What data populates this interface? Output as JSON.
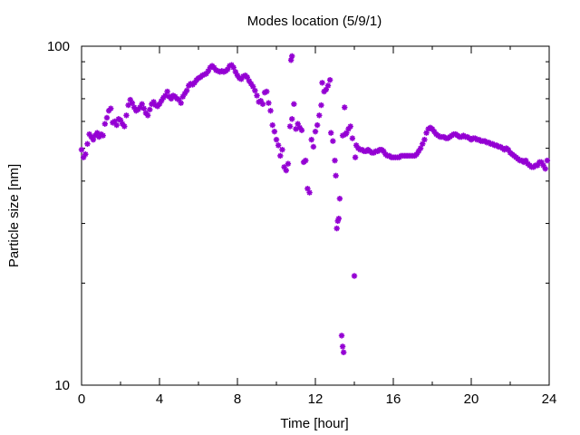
{
  "chart_data": {
    "type": "scatter",
    "title": "Modes location (5/9/1)",
    "xlabel": "Time [hour]",
    "ylabel": "Particle size [nm]",
    "xlim": [
      0,
      24
    ],
    "ylim": [
      10,
      100
    ],
    "yscale": "log",
    "x_ticks": [
      0,
      4,
      8,
      12,
      16,
      20,
      24
    ],
    "x_tick_labels": [
      "0",
      "4",
      "8",
      "12",
      "16",
      "20",
      "24"
    ],
    "y_ticks": [
      10,
      100
    ],
    "y_tick_labels": [
      "10",
      "100"
    ],
    "grid": false,
    "legend": "none",
    "marker_color": "#9400D3",
    "points": [
      [
        0.0,
        49.5
      ],
      [
        0.1,
        47.0
      ],
      [
        0.2,
        48.0
      ],
      [
        0.3,
        51.5
      ],
      [
        0.4,
        55.0
      ],
      [
        0.5,
        54.0
      ],
      [
        0.6,
        53.0
      ],
      [
        0.7,
        54.5
      ],
      [
        0.8,
        55.5
      ],
      [
        0.9,
        54.0
      ],
      [
        1.0,
        55.0
      ],
      [
        1.1,
        54.5
      ],
      [
        1.2,
        59.0
      ],
      [
        1.3,
        61.5
      ],
      [
        1.4,
        64.5
      ],
      [
        1.5,
        65.5
      ],
      [
        1.6,
        59.5
      ],
      [
        1.7,
        60.0
      ],
      [
        1.8,
        58.5
      ],
      [
        1.9,
        61.0
      ],
      [
        2.0,
        60.5
      ],
      [
        2.1,
        59.0
      ],
      [
        2.2,
        58.0
      ],
      [
        2.3,
        62.5
      ],
      [
        2.4,
        67.0
      ],
      [
        2.5,
        69.5
      ],
      [
        2.6,
        68.0
      ],
      [
        2.7,
        66.0
      ],
      [
        2.8,
        64.5
      ],
      [
        2.9,
        65.0
      ],
      [
        3.0,
        66.0
      ],
      [
        3.1,
        67.5
      ],
      [
        3.2,
        65.5
      ],
      [
        3.3,
        63.5
      ],
      [
        3.4,
        62.5
      ],
      [
        3.5,
        65.0
      ],
      [
        3.6,
        67.5
      ],
      [
        3.7,
        68.5
      ],
      [
        3.8,
        67.0
      ],
      [
        3.9,
        66.5
      ],
      [
        4.0,
        67.5
      ],
      [
        4.1,
        69.0
      ],
      [
        4.2,
        70.5
      ],
      [
        4.3,
        71.5
      ],
      [
        4.4,
        73.5
      ],
      [
        4.5,
        71.0
      ],
      [
        4.6,
        70.0
      ],
      [
        4.7,
        71.5
      ],
      [
        4.8,
        71.0
      ],
      [
        4.9,
        70.0
      ],
      [
        5.0,
        69.5
      ],
      [
        5.1,
        68.0
      ],
      [
        5.2,
        71.0
      ],
      [
        5.3,
        72.5
      ],
      [
        5.4,
        74.0
      ],
      [
        5.5,
        76.5
      ],
      [
        5.6,
        77.5
      ],
      [
        5.7,
        77.0
      ],
      [
        5.8,
        78.0
      ],
      [
        5.9,
        79.5
      ],
      [
        6.0,
        80.5
      ],
      [
        6.1,
        81.0
      ],
      [
        6.2,
        82.0
      ],
      [
        6.3,
        82.5
      ],
      [
        6.4,
        83.0
      ],
      [
        6.5,
        84.5
      ],
      [
        6.6,
        86.5
      ],
      [
        6.7,
        87.5
      ],
      [
        6.8,
        86.5
      ],
      [
        6.9,
        85.0
      ],
      [
        7.0,
        84.5
      ],
      [
        7.1,
        84.0
      ],
      [
        7.2,
        84.5
      ],
      [
        7.3,
        84.0
      ],
      [
        7.4,
        84.5
      ],
      [
        7.5,
        85.5
      ],
      [
        7.6,
        87.5
      ],
      [
        7.7,
        88.0
      ],
      [
        7.8,
        86.5
      ],
      [
        7.9,
        84.0
      ],
      [
        8.0,
        82.0
      ],
      [
        8.1,
        80.5
      ],
      [
        8.2,
        80.0
      ],
      [
        8.3,
        81.5
      ],
      [
        8.4,
        82.0
      ],
      [
        8.5,
        81.0
      ],
      [
        8.6,
        79.0
      ],
      [
        8.7,
        77.5
      ],
      [
        8.8,
        76.0
      ],
      [
        8.9,
        74.0
      ],
      [
        9.0,
        71.5
      ],
      [
        9.1,
        68.5
      ],
      [
        9.2,
        69.0
      ],
      [
        9.3,
        67.5
      ],
      [
        9.4,
        73.0
      ],
      [
        9.5,
        73.5
      ],
      [
        9.6,
        68.0
      ],
      [
        9.7,
        64.5
      ],
      [
        9.8,
        58.5
      ],
      [
        9.9,
        56.0
      ],
      [
        10.0,
        53.0
      ],
      [
        10.1,
        51.0
      ],
      [
        10.2,
        47.5
      ],
      [
        10.3,
        49.5
      ],
      [
        10.4,
        44.0
      ],
      [
        10.5,
        43.0
      ],
      [
        10.6,
        45.0
      ],
      [
        10.7,
        58.0
      ],
      [
        10.8,
        61.0
      ],
      [
        10.9,
        67.5
      ],
      [
        10.8,
        93.5
      ],
      [
        10.75,
        91.0
      ],
      [
        11.0,
        57.0
      ],
      [
        11.1,
        59.0
      ],
      [
        11.2,
        57.5
      ],
      [
        11.3,
        56.5
      ],
      [
        11.4,
        45.5
      ],
      [
        11.5,
        46.0
      ],
      [
        11.6,
        38.0
      ],
      [
        11.7,
        37.0
      ],
      [
        11.8,
        53.0
      ],
      [
        11.9,
        50.5
      ],
      [
        12.0,
        56.0
      ],
      [
        12.1,
        58.5
      ],
      [
        12.2,
        62.5
      ],
      [
        12.3,
        67.0
      ],
      [
        12.35,
        78.0
      ],
      [
        12.45,
        73.5
      ],
      [
        12.55,
        74.5
      ],
      [
        12.65,
        76.5
      ],
      [
        12.75,
        79.5
      ],
      [
        12.8,
        55.5
      ],
      [
        12.9,
        52.5
      ],
      [
        13.0,
        46.0
      ],
      [
        13.05,
        41.5
      ],
      [
        13.1,
        29.0
      ],
      [
        13.15,
        30.5
      ],
      [
        13.2,
        31.0
      ],
      [
        13.25,
        35.5
      ],
      [
        13.35,
        14.0
      ],
      [
        13.4,
        13.0
      ],
      [
        13.45,
        12.5
      ],
      [
        13.4,
        54.5
      ],
      [
        13.5,
        66.0
      ],
      [
        13.55,
        55.0
      ],
      [
        13.6,
        55.5
      ],
      [
        13.7,
        57.0
      ],
      [
        13.8,
        58.0
      ],
      [
        13.9,
        53.5
      ],
      [
        14.0,
        21.0
      ],
      [
        14.05,
        47.0
      ],
      [
        14.1,
        51.0
      ],
      [
        14.2,
        50.0
      ],
      [
        14.3,
        49.5
      ],
      [
        14.4,
        49.5
      ],
      [
        14.5,
        49.0
      ],
      [
        14.6,
        49.0
      ],
      [
        14.7,
        49.5
      ],
      [
        14.8,
        49.0
      ],
      [
        14.9,
        48.5
      ],
      [
        15.0,
        48.5
      ],
      [
        15.1,
        49.0
      ],
      [
        15.2,
        49.0
      ],
      [
        15.3,
        49.5
      ],
      [
        15.4,
        49.5
      ],
      [
        15.5,
        49.0
      ],
      [
        15.6,
        48.0
      ],
      [
        15.7,
        47.5
      ],
      [
        15.8,
        47.5
      ],
      [
        15.9,
        47.0
      ],
      [
        16.0,
        47.0
      ],
      [
        16.1,
        47.0
      ],
      [
        16.2,
        47.0
      ],
      [
        16.3,
        47.0
      ],
      [
        16.4,
        47.5
      ],
      [
        16.5,
        47.5
      ],
      [
        16.6,
        47.5
      ],
      [
        16.7,
        47.5
      ],
      [
        16.8,
        47.5
      ],
      [
        16.9,
        47.5
      ],
      [
        17.0,
        47.5
      ],
      [
        17.1,
        47.5
      ],
      [
        17.2,
        48.0
      ],
      [
        17.3,
        49.0
      ],
      [
        17.4,
        50.0
      ],
      [
        17.5,
        51.5
      ],
      [
        17.6,
        53.0
      ],
      [
        17.7,
        55.5
      ],
      [
        17.8,
        57.0
      ],
      [
        17.9,
        57.5
      ],
      [
        18.0,
        57.0
      ],
      [
        18.1,
        56.0
      ],
      [
        18.2,
        55.0
      ],
      [
        18.3,
        54.5
      ],
      [
        18.4,
        54.0
      ],
      [
        18.5,
        54.0
      ],
      [
        18.6,
        54.0
      ],
      [
        18.7,
        53.5
      ],
      [
        18.8,
        53.5
      ],
      [
        18.9,
        54.0
      ],
      [
        19.0,
        54.5
      ],
      [
        19.1,
        55.0
      ],
      [
        19.2,
        55.0
      ],
      [
        19.3,
        54.5
      ],
      [
        19.4,
        54.0
      ],
      [
        19.5,
        54.0
      ],
      [
        19.6,
        54.5
      ],
      [
        19.7,
        54.0
      ],
      [
        19.8,
        54.0
      ],
      [
        19.9,
        53.5
      ],
      [
        20.0,
        53.0
      ],
      [
        20.1,
        53.5
      ],
      [
        20.2,
        53.5
      ],
      [
        20.3,
        53.0
      ],
      [
        20.4,
        53.0
      ],
      [
        20.5,
        52.5
      ],
      [
        20.6,
        52.5
      ],
      [
        20.7,
        52.5
      ],
      [
        20.8,
        52.0
      ],
      [
        20.9,
        52.0
      ],
      [
        21.0,
        51.5
      ],
      [
        21.1,
        51.5
      ],
      [
        21.2,
        51.0
      ],
      [
        21.3,
        51.0
      ],
      [
        21.4,
        50.5
      ],
      [
        21.5,
        50.5
      ],
      [
        21.6,
        50.0
      ],
      [
        21.7,
        49.5
      ],
      [
        21.8,
        50.0
      ],
      [
        21.9,
        49.5
      ],
      [
        22.0,
        48.5
      ],
      [
        22.1,
        48.0
      ],
      [
        22.2,
        47.5
      ],
      [
        22.3,
        47.0
      ],
      [
        22.4,
        46.5
      ],
      [
        22.5,
        46.0
      ],
      [
        22.6,
        46.0
      ],
      [
        22.7,
        45.5
      ],
      [
        22.8,
        46.0
      ],
      [
        22.9,
        45.0
      ],
      [
        23.0,
        44.5
      ],
      [
        23.1,
        44.0
      ],
      [
        23.2,
        44.0
      ],
      [
        23.3,
        44.5
      ],
      [
        23.4,
        44.5
      ],
      [
        23.5,
        45.5
      ],
      [
        23.6,
        45.5
      ],
      [
        23.7,
        44.5
      ],
      [
        23.8,
        43.5
      ],
      [
        23.9,
        46.0
      ]
    ]
  }
}
